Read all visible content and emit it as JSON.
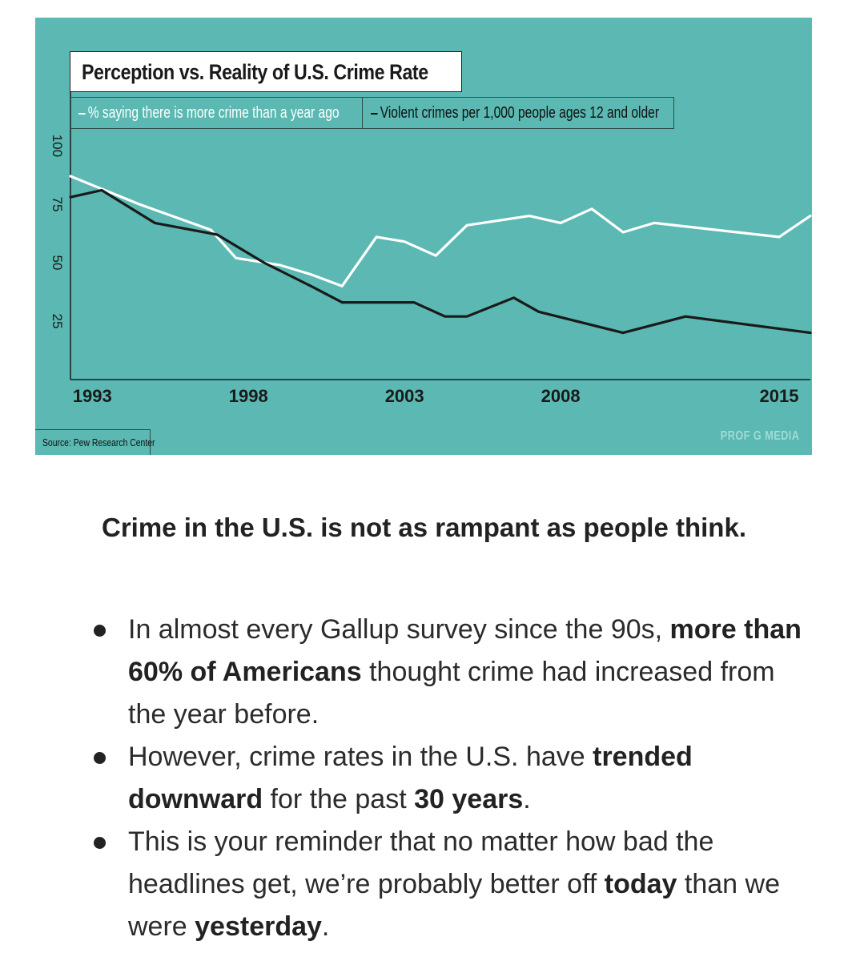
{
  "chart_data": {
    "type": "line",
    "title": "Perception vs. Reality of U.S. Crime Rate",
    "ylim": [
      0,
      100
    ],
    "y_ticks": [
      "100",
      "75",
      "50",
      "25"
    ],
    "y_tick_values": [
      100,
      75,
      50,
      25
    ],
    "xlim": [
      1992.3,
      2016.0
    ],
    "x_ticks": [
      "1993",
      "1998",
      "2003",
      "2008",
      "2015"
    ],
    "x_tick_values": [
      1993,
      1998,
      2003,
      2008,
      2015
    ],
    "series": [
      {
        "name": "% saying there is more crime than a year ago",
        "color": "#ffffff",
        "points": [
          [
            1992.3,
            87
          ],
          [
            1994.5,
            75
          ],
          [
            1996.8,
            64
          ],
          [
            1997.6,
            52
          ],
          [
            1999.0,
            49
          ],
          [
            2000.0,
            45
          ],
          [
            2001.0,
            40
          ],
          [
            2002.1,
            61
          ],
          [
            2003.0,
            59
          ],
          [
            2004.0,
            53
          ],
          [
            2005.0,
            66
          ],
          [
            2007.0,
            70
          ],
          [
            2008.0,
            67
          ],
          [
            2009.0,
            73
          ],
          [
            2010.0,
            63
          ],
          [
            2011.0,
            67
          ],
          [
            2015.0,
            61
          ],
          [
            2016.0,
            70
          ]
        ]
      },
      {
        "name": "Violent crimes per 1,000 people ages 12 and older",
        "color": "#1a1a1a",
        "points": [
          [
            1992.3,
            78
          ],
          [
            1993.3,
            81
          ],
          [
            1995.0,
            67
          ],
          [
            1997.0,
            62
          ],
          [
            1998.5,
            50
          ],
          [
            2000.0,
            40
          ],
          [
            2001.0,
            33
          ],
          [
            2003.3,
            33
          ],
          [
            2004.3,
            27
          ],
          [
            2005.0,
            27
          ],
          [
            2006.5,
            35
          ],
          [
            2007.3,
            29
          ],
          [
            2010.0,
            20
          ],
          [
            2012.0,
            27
          ],
          [
            2016.0,
            20
          ]
        ]
      }
    ],
    "legend": [
      "% saying there is more crime than a year ago",
      "Violent crimes per 1,000 people ages 12 and older"
    ],
    "source": "Source: Pew Research Center",
    "credit": "PROF G MEDIA"
  },
  "caption": "Crime in the U.S. is not as rampant as people think.",
  "bullets": [
    {
      "a": "In almost every Gallup survey since the 90s, ",
      "b": "more than 60% of Americans",
      "c": " thought crime had increased from the year before."
    },
    {
      "a": "However, crime rates in the U.S. have ",
      "b": "trended downward",
      "c": " for the past ",
      "d": "30 years",
      "e": "."
    },
    {
      "a": "This is your reminder that no matter how bad the headlines get, we’re probably better off ",
      "b": "today",
      "c": " than we were ",
      "d": "yesterday",
      "e": "."
    }
  ]
}
